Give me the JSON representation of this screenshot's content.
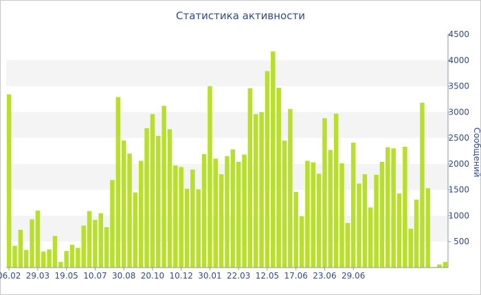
{
  "chart_data": {
    "type": "bar",
    "title": "Статистика активности",
    "ylabel": "Сообщений",
    "xlabel": "",
    "ylim": [
      0,
      4500
    ],
    "yticks": [
      500,
      1000,
      1500,
      2000,
      2500,
      3000,
      3500,
      4000,
      4500
    ],
    "y_axis_side": "right",
    "grid": "alternating horizontal bands",
    "bar_color": "#b8e02a",
    "band_color": "#f4f4f4",
    "text_color": "#2f4a86",
    "xtick_labels": [
      "06.02",
      "29.03",
      "19.05",
      "10.07",
      "30.08",
      "20.10",
      "10.12",
      "30.01",
      "22.03",
      "12.05",
      "17.06",
      "23.06",
      "29.06"
    ],
    "xtick_positions": [
      0,
      5,
      10,
      15,
      20,
      25,
      30,
      35,
      40,
      45,
      50,
      55,
      60
    ],
    "values": [
      3340,
      420,
      730,
      340,
      930,
      1100,
      310,
      350,
      610,
      110,
      320,
      440,
      380,
      810,
      1090,
      920,
      1050,
      780,
      1690,
      3290,
      2450,
      2200,
      1450,
      2060,
      2690,
      2960,
      2540,
      3120,
      2670,
      1970,
      1940,
      1520,
      1890,
      1510,
      2190,
      3500,
      2100,
      1800,
      2150,
      2280,
      2040,
      2180,
      3460,
      2960,
      3000,
      3790,
      4170,
      3470,
      2450,
      3060,
      1460,
      990,
      2060,
      2030,
      1810,
      2880,
      2270,
      2970,
      2010,
      860,
      2410,
      1620,
      1800,
      1160,
      1790,
      2040,
      2320,
      2300,
      1430,
      2330,
      750,
      1310,
      3180,
      1530,
      10,
      60,
      110
    ]
  }
}
